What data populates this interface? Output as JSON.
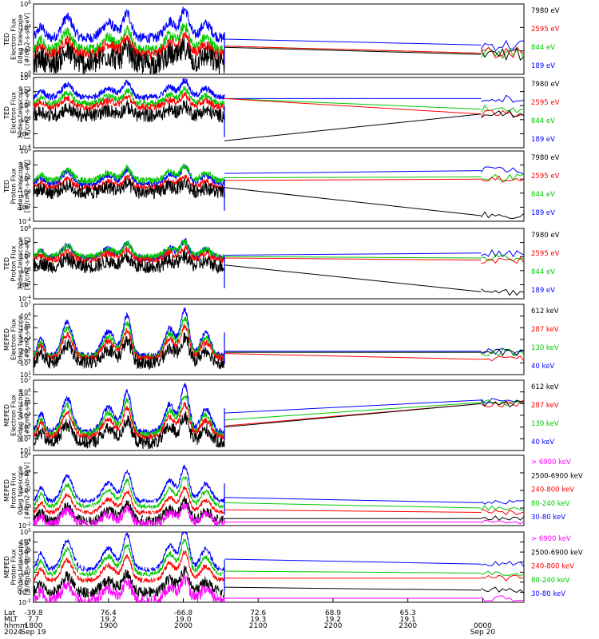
{
  "colors": {
    "blue": "#0000ff",
    "red": "#ff0000",
    "green": "#00c800",
    "black": "#000000",
    "magenta": "#ff00ff"
  },
  "chart_data": [
    {
      "type": "line",
      "ylabel_lines": [
        "TED",
        "Electron Flux",
        "0deg telescope",
        "[#/cm2-s-str-eV]"
      ],
      "yscale": "log",
      "ylim_exp": [
        0,
        6
      ],
      "yticks": [
        "10^0",
        "10^2",
        "10^4",
        "10^6"
      ],
      "legend": [
        {
          "label": "7980 eV",
          "color": "black"
        },
        {
          "label": "2595 eV",
          "color": "red"
        },
        {
          "label": "844 eV",
          "color": "green"
        },
        {
          "label": "189 eV",
          "color": "blue"
        }
      ],
      "after_gap": {
        "blue": [
          3.0,
          2.5
        ],
        "green": [
          2.4,
          1.8
        ],
        "red": [
          2.4,
          1.8
        ],
        "black": [
          2.3,
          1.7
        ]
      },
      "baseline": {
        "blue": 3.1,
        "green": 2.1,
        "red": 1.7,
        "black": 1.3
      }
    },
    {
      "type": "line",
      "ylabel_lines": [
        "TED",
        "Electron Flux",
        "30deg telescope",
        "[#/cm2-s-str-eV]"
      ],
      "yscale": "log",
      "ylim_exp": [
        -4,
        6
      ],
      "yticks": [
        "10^-4",
        "10^-2",
        "10^0",
        "10^2",
        "10^4",
        "10^6"
      ],
      "legend": [
        {
          "label": "7980 eV",
          "color": "black"
        },
        {
          "label": "2595 eV",
          "color": "red"
        },
        {
          "label": "844 eV",
          "color": "green"
        },
        {
          "label": "189 eV",
          "color": "blue"
        }
      ],
      "after_gap": {
        "blue": [
          3.0,
          3.0
        ],
        "green": [
          3.0,
          1.5
        ],
        "red": [
          3.0,
          0.8
        ],
        "black": [
          -3.0,
          0.8
        ]
      },
      "baseline": {
        "blue": 3.2,
        "green": 2.3,
        "red": 1.8,
        "black": 1.0
      }
    },
    {
      "type": "line",
      "ylabel_lines": [
        "TED",
        "Proton Flux",
        "0deg telescope",
        "[#/cm2-s-str-eV]"
      ],
      "yscale": "log",
      "ylim_exp": [
        -4,
        6
      ],
      "yticks": [
        "10^-4",
        "10^-2",
        "10^0",
        "10^2",
        "10^4",
        "10^6"
      ],
      "legend": [
        {
          "label": "7980 eV",
          "color": "black"
        },
        {
          "label": "2595 eV",
          "color": "red"
        },
        {
          "label": "844 eV",
          "color": "green"
        },
        {
          "label": "189 eV",
          "color": "blue"
        }
      ],
      "after_gap": {
        "blue": [
          2.8,
          3.2
        ],
        "green": [
          2.2,
          2.3
        ],
        "red": [
          1.8,
          2.0
        ],
        "black": [
          0.8,
          -3.2
        ]
      },
      "baseline": {
        "blue": 1.3,
        "green": 1.8,
        "red": 0.8,
        "black": 0.5
      }
    },
    {
      "type": "line",
      "ylabel_lines": [
        "TED",
        "Proton Flux",
        "30deg telescope",
        "[#/cm2-s-str-eV]"
      ],
      "yscale": "log",
      "ylim_exp": [
        -4,
        6
      ],
      "yticks": [
        "10^-4",
        "10^-2",
        "10^0",
        "10^2",
        "10^4",
        "10^6"
      ],
      "legend": [
        {
          "label": "7980 eV",
          "color": "black"
        },
        {
          "label": "2595 eV",
          "color": "red"
        },
        {
          "label": "844 eV",
          "color": "green"
        },
        {
          "label": "189 eV",
          "color": "blue"
        }
      ],
      "after_gap": {
        "blue": [
          2.2,
          2.5
        ],
        "green": [
          2.0,
          1.8
        ],
        "red": [
          1.8,
          1.5
        ],
        "black": [
          0.8,
          -3.0
        ]
      },
      "baseline": {
        "blue": 1.8,
        "green": 2.0,
        "red": 1.5,
        "black": 1.0
      }
    },
    {
      "type": "line",
      "ylabel_lines": [
        "MEPED",
        "Electron Flux",
        "0deg telescope",
        "[#/cm2-s-str]"
      ],
      "yscale": "log",
      "ylim_exp": [
        1,
        7
      ],
      "yticks": [
        "10^1",
        "10^2",
        "10^3",
        "10^4",
        "10^5",
        "10^6",
        "10^7"
      ],
      "legend": [
        {
          "label": "612 keV",
          "color": "black"
        },
        {
          "label": "287 keV",
          "color": "red"
        },
        {
          "label": "130 keV",
          "color": "green"
        },
        {
          "label": "40 keV",
          "color": "blue"
        }
      ],
      "after_gap": {
        "blue": [
          3.0,
          3.0
        ],
        "green": [
          2.9,
          2.9
        ],
        "red": [
          2.8,
          2.3
        ],
        "black": [
          2.9,
          2.9
        ]
      },
      "baseline": {
        "blue": 2.6,
        "green": 2.5,
        "red": 2.4,
        "black": 2.2
      }
    },
    {
      "type": "line",
      "ylabel_lines": [
        "MEPED",
        "Electron Flux",
        "90deg telescope",
        "[#/cm2-s-str]"
      ],
      "yscale": "log",
      "ylim_exp": [
        1,
        7
      ],
      "yticks": [
        "10^1",
        "10^2",
        "10^3",
        "10^4",
        "10^5",
        "10^6",
        "10^7"
      ],
      "legend": [
        {
          "label": "612 keV",
          "color": "black"
        },
        {
          "label": "287 keV",
          "color": "red"
        },
        {
          "label": "130 keV",
          "color": "green"
        },
        {
          "label": "40 keV",
          "color": "blue"
        }
      ],
      "after_gap": {
        "blue": [
          4.2,
          5.3
        ],
        "green": [
          3.6,
          5.1
        ],
        "red": [
          3.1,
          5.0
        ],
        "black": [
          3.0,
          5.0
        ]
      },
      "baseline": {
        "blue": 2.6,
        "green": 2.4,
        "red": 2.2,
        "black": 1.9
      }
    },
    {
      "type": "line",
      "ylabel_lines": [
        "MEPED",
        "Proton Flux",
        "0deg telescope",
        "[#/cm2-s-str-keV]"
      ],
      "yscale": "log",
      "ylim_exp": [
        -2,
        6
      ],
      "yticks": [
        "10^-2",
        "10^0",
        "10^2",
        "10^4",
        "10^6"
      ],
      "legend": [
        {
          "label": "> 6900 keV",
          "color": "magenta"
        },
        {
          "label": "2500-6900 keV",
          "color": "black"
        },
        {
          "label": "240-800 keV",
          "color": "red"
        },
        {
          "label": "80-240 keV",
          "color": "green"
        },
        {
          "label": "30-80 keV",
          "color": "blue"
        }
      ],
      "after_gap": {
        "blue": [
          1.2,
          0.6
        ],
        "green": [
          0.6,
          0.0
        ],
        "red": [
          -0.2,
          -0.5
        ],
        "black": [
          -1.2,
          -1.2
        ],
        "magenta": [
          -1.6,
          -1.6
        ]
      },
      "baseline": {
        "blue": 0.8,
        "green": 0.2,
        "red": -0.5,
        "black": -1.2,
        "magenta": -1.6
      }
    },
    {
      "type": "line",
      "ylabel_lines": [
        "MEPED",
        "Proton Flux",
        "90deg telescope",
        "[#/cm2-s-str-keV]"
      ],
      "yscale": "log",
      "ylim_exp": [
        -2,
        5
      ],
      "yticks": [
        "10^-2",
        "10^-1",
        "10^0",
        "10^1",
        "10^2",
        "10^3",
        "10^4",
        "10^5"
      ],
      "legend": [
        {
          "label": "> 6900 keV",
          "color": "magenta"
        },
        {
          "label": "2500-6900 keV",
          "color": "black"
        },
        {
          "label": "240-800 keV",
          "color": "red"
        },
        {
          "label": "80-240 keV",
          "color": "green"
        },
        {
          "label": "30-80 keV",
          "color": "blue"
        }
      ],
      "after_gap": {
        "blue": [
          2.3,
          1.8
        ],
        "green": [
          1.1,
          0.9
        ],
        "red": [
          0.4,
          0.4
        ],
        "black": [
          -0.5,
          -0.8
        ],
        "magenta": [
          -1.6,
          -1.6
        ]
      },
      "baseline": {
        "blue": 1.3,
        "green": 0.8,
        "red": 0.2,
        "black": -0.8,
        "magenta": -1.6
      }
    }
  ],
  "x_axis": {
    "row_labels": [
      "Lat",
      "MLT",
      "hhmm",
      "2024"
    ],
    "ticks": [
      {
        "lat": "-39.8",
        "mlt": "7.7",
        "hhmm": "1800",
        "date": "Sep 19",
        "t": 0
      },
      {
        "lat": "76.4",
        "mlt": "19.2",
        "hhmm": "1900",
        "date": "",
        "t": 1
      },
      {
        "lat": "-66.8",
        "mlt": "19.0",
        "hhmm": "2000",
        "date": "",
        "t": 2
      },
      {
        "lat": "72.6",
        "mlt": "19.3",
        "hhmm": "2100",
        "date": "",
        "t": 3
      },
      {
        "lat": "68.9",
        "mlt": "19.2",
        "hhmm": "2200",
        "date": "",
        "t": 4
      },
      {
        "lat": "65.3",
        "mlt": "19.1",
        "hhmm": "2300",
        "date": "",
        "t": 5
      },
      {
        "lat": "",
        "mlt": "",
        "hhmm": "0000",
        "date": "Sep 20",
        "t": 6
      }
    ],
    "data_gap": [
      2.55,
      5.98
    ]
  }
}
